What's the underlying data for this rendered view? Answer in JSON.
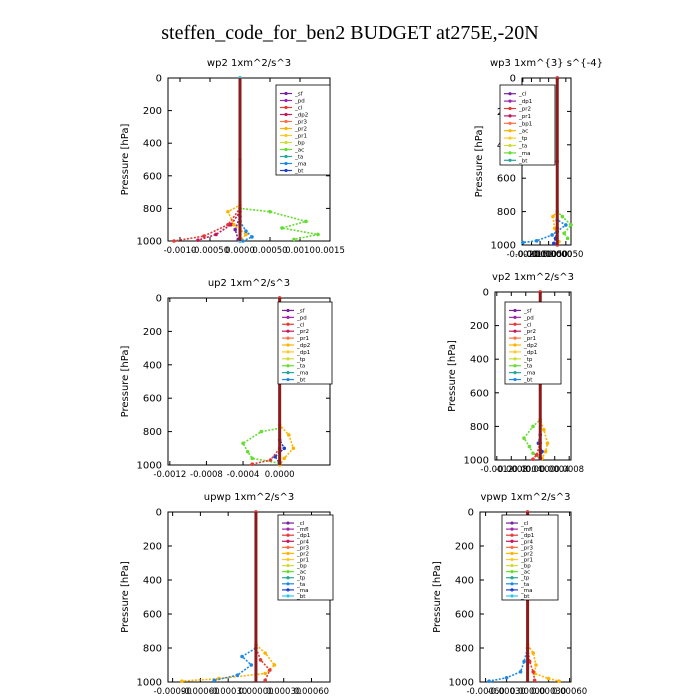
{
  "page": {
    "title": "steffen_code_for_ben2  BUDGET at275E,-20N"
  },
  "chart_data": [
    {
      "type": "line",
      "title": "wp2   1xm^2/s^3",
      "ylabel": "Pressure [hPa]",
      "xlim": [
        -0.0012,
        0.0015
      ],
      "ylim": [
        1000,
        0
      ],
      "xticks": [
        -0.001,
        -0.0005,
        0,
        0.0005,
        0.001,
        0.0015
      ],
      "xtick_labels": [
        "-0.0010",
        "-0.00050",
        "0.0000",
        "0.00050",
        "0.0010",
        "0.0015"
      ],
      "yticks": [
        0,
        200,
        400,
        600,
        800,
        1000
      ],
      "legend": [
        "_sf",
        "_pd",
        "_cl",
        "_dp2",
        "_pr3",
        "_pr2",
        "_pr1",
        "_bp",
        "_ac",
        "_ta",
        "_ma",
        "_bt"
      ],
      "legend_position": "top-right",
      "series": [
        {
          "name": "_pd",
          "color": "#7b1fa2",
          "x": [
            0,
            0,
            -8e-05,
            -3e-05,
            0
          ],
          "y": [
            0,
            850,
            930,
            990,
            1000
          ]
        },
        {
          "name": "_cl",
          "color": "#e53935",
          "x": [
            0,
            0,
            -0.0002,
            -0.0006,
            -0.0011
          ],
          "y": [
            0,
            800,
            900,
            970,
            1000
          ]
        },
        {
          "name": "_dp2",
          "color": "#c2185b",
          "x": [
            0,
            0,
            -0.00015,
            -0.0004,
            -0.0007
          ],
          "y": [
            0,
            820,
            900,
            960,
            995
          ]
        },
        {
          "name": "_pr2",
          "color": "#ffb300",
          "x": [
            0,
            0,
            -0.0002,
            -0.0001,
            0.0001,
            0
          ],
          "y": [
            0,
            780,
            820,
            900,
            960,
            1000
          ]
        },
        {
          "name": "_pr1",
          "color": "#66dd33",
          "x": [
            0,
            0,
            0.0005,
            0.0011,
            0.0007,
            0.0013,
            0.0009
          ],
          "y": [
            0,
            800,
            820,
            880,
            920,
            960,
            990
          ]
        },
        {
          "name": "_ta",
          "color": "#1e88e5",
          "x": [
            0,
            0,
            0.0001,
            0.0002,
            5e-05
          ],
          "y": [
            0,
            880,
            940,
            975,
            1000
          ]
        },
        {
          "name": "_bt",
          "color": "#33c8e8",
          "x": [
            0,
            0,
            0,
            0
          ],
          "y": [
            0,
            500,
            900,
            1000
          ]
        }
      ]
    },
    {
      "type": "line",
      "title": "wp3   1xm^{3} s^{-4}",
      "ylabel": "Pressure [hPa]",
      "xlim": [
        -0.00205,
        0.0008
      ],
      "ylim": [
        1000,
        0
      ],
      "xticks": [
        -0.002,
        -0.0015,
        -0.001,
        -0.0005,
        0,
        0.0005
      ],
      "xtick_labels": [
        "-0.0020",
        "-0.0015",
        "-0.0010",
        "-0.00050",
        "0.0000",
        "0.00050"
      ],
      "yticks": [
        0,
        200,
        400,
        600,
        800,
        1000
      ],
      "legend": [
        "_cl",
        "_dp1",
        "_pr2",
        "_pr1",
        "_bp1",
        "_ac",
        "_tp",
        "_ta",
        "_ma",
        "_bt"
      ],
      "legend_position": "top-right",
      "series": [
        {
          "name": "_pr2",
          "color": "#ffb300",
          "x": [
            0,
            0,
            -0.00025,
            -0.00015,
            0.0001
          ],
          "y": [
            0,
            800,
            830,
            900,
            980
          ]
        },
        {
          "name": "_ac",
          "color": "#66dd33",
          "x": [
            0,
            0,
            0.0003,
            0.0008,
            0.0004,
            0.0006
          ],
          "y": [
            0,
            800,
            830,
            880,
            930,
            960
          ]
        },
        {
          "name": "_tp",
          "color": "#1e88e5",
          "x": [
            0,
            0,
            0.0005,
            -0.0003,
            -0.0012,
            -0.002
          ],
          "y": [
            0,
            850,
            880,
            940,
            975,
            985
          ]
        },
        {
          "name": "_ta",
          "color": "#1e40c8",
          "x": [
            0,
            0,
            -0.0001,
            -0.0002
          ],
          "y": [
            0,
            920,
            960,
            990
          ]
        },
        {
          "name": "_cl",
          "color": "#e53935",
          "x": [
            0,
            0,
            0,
            0
          ],
          "y": [
            0,
            500,
            900,
            1000
          ]
        }
      ]
    },
    {
      "type": "line",
      "title": "up2   1xm^2/s^3",
      "ylabel": "Pressure [hPa]",
      "xlim": [
        -0.00122,
        0.00055
      ],
      "ylim": [
        1000,
        0
      ],
      "xticks": [
        -0.0012,
        -0.0008,
        -0.0004,
        0
      ],
      "xtick_labels": [
        "-0.0012",
        "-0.0008",
        "-0.0004",
        "0.0000"
      ],
      "yticks": [
        0,
        200,
        400,
        600,
        800,
        1000
      ],
      "legend": [
        "_sf",
        "_pd",
        "_cl",
        "_pr2",
        "_pr1",
        "_dp2",
        "_dp1",
        "_tp",
        "_ta",
        "_ma",
        "_bt"
      ],
      "legend_position": "top-right",
      "series": [
        {
          "name": "_dp2",
          "color": "#66dd33",
          "x": [
            0,
            0,
            -0.0002,
            -0.0004,
            -0.00035,
            -0.0003,
            0
          ],
          "y": [
            0,
            780,
            800,
            870,
            920,
            960,
            990
          ]
        },
        {
          "name": "_pr2",
          "color": "#ffb300",
          "x": [
            0,
            0,
            0.0001,
            0.00015,
            5e-05,
            0
          ],
          "y": [
            0,
            760,
            820,
            900,
            960,
            1000
          ]
        },
        {
          "name": "_tp",
          "color": "#1e40c8",
          "x": [
            0,
            0,
            5e-05,
            -5e-05,
            0
          ],
          "y": [
            0,
            850,
            900,
            950,
            990
          ]
        },
        {
          "name": "_cl",
          "color": "#e53935",
          "x": [
            0,
            0,
            0,
            -0.0001,
            -0.0003
          ],
          "y": [
            0,
            500,
            900,
            970,
            995
          ]
        }
      ]
    },
    {
      "type": "line",
      "title": "vp2   1xm^2/s^3",
      "ylabel": "Pressure [hPa]",
      "xlim": [
        -0.00125,
        0.00085
      ],
      "ylim": [
        1000,
        0
      ],
      "xticks": [
        -0.0012,
        -0.0008,
        -0.0004,
        0,
        0.0004,
        0.0008
      ],
      "xtick_labels": [
        "-0.0012",
        "-0.0008",
        "-0.0004",
        "0.0000",
        "0.0004",
        "0.0008"
      ],
      "yticks": [
        0,
        200,
        400,
        600,
        800,
        1000
      ],
      "legend": [
        "_sf",
        "_pd",
        "_cl",
        "_pr2",
        "_pr1",
        "_dp2",
        "_dp1",
        "_tp",
        "_ta",
        "_ma",
        "_bt"
      ],
      "legend_position": "top-right",
      "series": [
        {
          "name": "_dp2",
          "color": "#66dd33",
          "x": [
            0,
            0,
            -0.0002,
            -0.00045,
            -0.0003,
            -0.0002,
            0
          ],
          "y": [
            0,
            760,
            800,
            870,
            920,
            960,
            990
          ]
        },
        {
          "name": "_pr2",
          "color": "#ffb300",
          "x": [
            0,
            0,
            0.0001,
            0.0002,
            0.00015,
            5e-05
          ],
          "y": [
            0,
            760,
            820,
            900,
            950,
            990
          ]
        },
        {
          "name": "_tp",
          "color": "#1e40c8",
          "x": [
            0,
            0,
            -5e-05,
            5e-05,
            0
          ],
          "y": [
            0,
            850,
            900,
            950,
            990
          ]
        },
        {
          "name": "_cl",
          "color": "#e53935",
          "x": [
            0,
            0,
            0,
            -0.0001,
            -0.0002
          ],
          "y": [
            0,
            500,
            900,
            970,
            995
          ]
        }
      ]
    },
    {
      "type": "line",
      "title": "upwp   1xm^2/s^3",
      "ylabel": "Pressure [hPa]",
      "xlim": [
        -0.00095,
        0.0008
      ],
      "ylim": [
        1000,
        0
      ],
      "xticks": [
        -0.0009,
        -0.0006,
        -0.0003,
        0,
        0.0003,
        0.0006
      ],
      "xtick_labels": [
        "-0.00090",
        "-0.00060",
        "-0.00030",
        "0.00000",
        "0.00030",
        "0.00060"
      ],
      "yticks": [
        0,
        200,
        400,
        600,
        800,
        1000
      ],
      "legend": [
        "_cl",
        "_mfl",
        "_dp1",
        "_pr4",
        "_pr3",
        "_pr2",
        "_pr1",
        "_bp",
        "_ac",
        "_tp",
        "_ta",
        "_ma",
        "_bt"
      ],
      "legend_position": "top-right",
      "series": [
        {
          "name": "_pr1",
          "color": "#ffb300",
          "x": [
            0,
            0,
            0.0001,
            0.0002,
            0.0001,
            -0.0004,
            -0.0008
          ],
          "y": [
            0,
            780,
            830,
            900,
            950,
            980,
            995
          ]
        },
        {
          "name": "_tp",
          "color": "#1e88e5",
          "x": [
            0,
            0,
            -0.00015,
            -5e-05,
            -0.0002,
            -0.00045
          ],
          "y": [
            0,
            800,
            850,
            900,
            960,
            990
          ]
        },
        {
          "name": "_cl",
          "color": "#e53935",
          "x": [
            0,
            0,
            5e-05,
            0.00015,
            0.0001
          ],
          "y": [
            0,
            800,
            870,
            930,
            990
          ]
        }
      ]
    },
    {
      "type": "line",
      "title": "vpwp   1xm^2/s^3",
      "ylabel": "Pressure [hPa]",
      "xlim": [
        -0.00068,
        0.00062
      ],
      "ylim": [
        1000,
        0
      ],
      "xticks": [
        -0.0006,
        -0.0003,
        0,
        0.0003,
        0.0006
      ],
      "xtick_labels": [
        "-0.00060",
        "-0.00030",
        "0.00000",
        "0.00030",
        "0.00060"
      ],
      "yticks": [
        0,
        200,
        400,
        600,
        800,
        1000
      ],
      "legend": [
        "_cl",
        "_mfl",
        "_dp1",
        "_pr4",
        "_pr3",
        "_pr2",
        "_pr1",
        "_bp",
        "_ac",
        "_tp",
        "_ta",
        "_ma",
        "_bt"
      ],
      "legend_position": "top-right",
      "series": [
        {
          "name": "_pr1",
          "color": "#ffb300",
          "x": [
            0,
            0,
            8e-05,
            0.00012,
            0.0001,
            0.0003,
            0.00045
          ],
          "y": [
            0,
            780,
            830,
            900,
            950,
            980,
            995
          ]
        },
        {
          "name": "_tp",
          "color": "#1e88e5",
          "x": [
            0,
            0,
            -5e-05,
            -0.0001,
            -0.0003,
            -0.00055
          ],
          "y": [
            0,
            800,
            880,
            940,
            975,
            995
          ]
        },
        {
          "name": "_cl",
          "color": "#e53935",
          "x": [
            0,
            0,
            3e-05,
            8e-05,
            0.0001
          ],
          "y": [
            0,
            800,
            880,
            940,
            990
          ]
        }
      ]
    }
  ]
}
